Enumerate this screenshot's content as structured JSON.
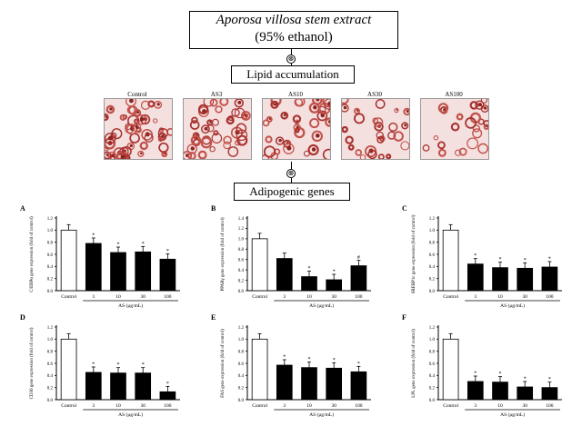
{
  "diagram": {
    "title_line1": "Aporosa villosa stem extract",
    "title_line2": "(95% ethanol)",
    "lipid_label": "Lipid accumulation",
    "adipo_label": "Adipogenic genes",
    "inhibit_symbol": "⊗",
    "micrographs": [
      {
        "label": "Control",
        "density": 1.0
      },
      {
        "label": "AS3",
        "density": 0.75
      },
      {
        "label": "AS10",
        "density": 0.6
      },
      {
        "label": "AS30",
        "density": 0.45
      },
      {
        "label": "AS100",
        "density": 0.35
      }
    ]
  },
  "chart_data": [
    {
      "type": "bar",
      "panel": "A",
      "ylabel": "C/EBPα gene expression (fold of control)",
      "xlabel": "AS (μg/mL)",
      "categories": [
        "Control",
        "3",
        "10",
        "30",
        "100"
      ],
      "values": [
        1.0,
        0.78,
        0.63,
        0.64,
        0.52
      ],
      "significance": [
        "",
        "*",
        "*",
        "*",
        "*"
      ],
      "ylim": [
        0,
        1.2
      ],
      "yticks": [
        "0.0",
        "0.2",
        "0.4",
        "0.6",
        "0.8",
        "1.0",
        "1.2"
      ]
    },
    {
      "type": "bar",
      "panel": "B",
      "ylabel": "PPARγ gene expression (fold of control)",
      "xlabel": "AS (μg/mL)",
      "categories": [
        "Control",
        "3",
        "10",
        "30",
        "100"
      ],
      "values": [
        1.0,
        0.62,
        0.27,
        0.21,
        0.48
      ],
      "significance": [
        "",
        "",
        "*",
        "*",
        "#"
      ],
      "ylim": [
        0,
        1.4
      ],
      "yticks": [
        "0.0",
        "0.2",
        "0.4",
        "0.6",
        "0.8",
        "1.0",
        "1.2",
        "1.4"
      ]
    },
    {
      "type": "bar",
      "panel": "C",
      "ylabel": "SREBP1c gene expression (fold of control)",
      "xlabel": "AS (μg/mL)",
      "categories": [
        "Control",
        "3",
        "10",
        "30",
        "100"
      ],
      "values": [
        1.0,
        0.44,
        0.38,
        0.37,
        0.39
      ],
      "significance": [
        "",
        "*",
        "*",
        "*",
        "*"
      ],
      "ylim": [
        0,
        1.2
      ],
      "yticks": [
        "0.0",
        "0.2",
        "0.4",
        "0.6",
        "0.8",
        "1.0",
        "1.2"
      ]
    },
    {
      "type": "bar",
      "panel": "D",
      "ylabel": "CD36 gene expression (fold of control)",
      "xlabel": "AS (μg/mL)",
      "categories": [
        "Control",
        "3",
        "10",
        "30",
        "100"
      ],
      "values": [
        1.0,
        0.45,
        0.44,
        0.44,
        0.13
      ],
      "significance": [
        "",
        "*",
        "*",
        "*",
        "*"
      ],
      "ylim": [
        0,
        1.2
      ],
      "yticks": [
        "0.0",
        "0.2",
        "0.4",
        "0.6",
        "0.8",
        "1.0",
        "1.2"
      ]
    },
    {
      "type": "bar",
      "panel": "E",
      "ylabel": "FAS gene expression (fold of control)",
      "xlabel": "AS (μg/mL)",
      "categories": [
        "Control",
        "3",
        "10",
        "30",
        "100"
      ],
      "values": [
        1.0,
        0.57,
        0.53,
        0.52,
        0.46
      ],
      "significance": [
        "",
        "*",
        "*",
        "*",
        "*"
      ],
      "ylim": [
        0,
        1.2
      ],
      "yticks": [
        "0.0",
        "0.2",
        "0.4",
        "0.6",
        "0.8",
        "1.0",
        "1.2"
      ]
    },
    {
      "type": "bar",
      "panel": "F",
      "ylabel": "LPL gene expression (fold of control)",
      "xlabel": "AS (μg/mL)",
      "categories": [
        "Control",
        "3",
        "10",
        "30",
        "100"
      ],
      "values": [
        1.0,
        0.3,
        0.29,
        0.21,
        0.2
      ],
      "significance": [
        "",
        "*",
        "*",
        "*",
        "*"
      ],
      "ylim": [
        0,
        1.2
      ],
      "yticks": [
        "0.0",
        "0.2",
        "0.4",
        "0.6",
        "0.8",
        "1.0",
        "1.2"
      ]
    }
  ]
}
